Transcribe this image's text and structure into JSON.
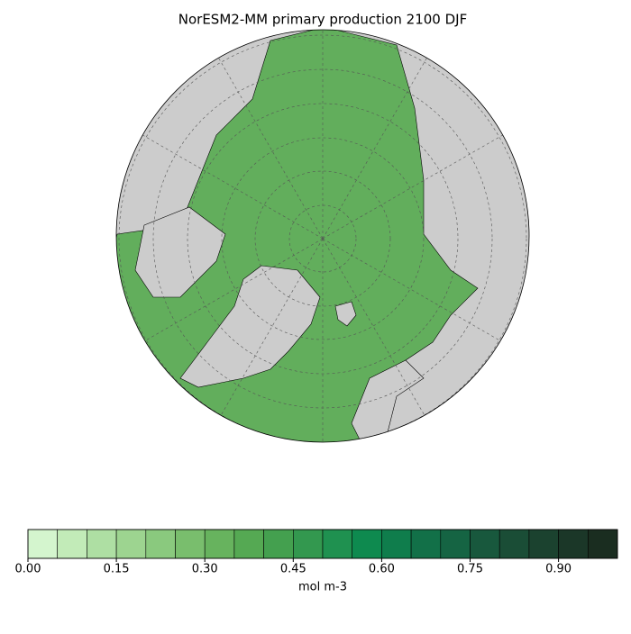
{
  "title": "NorESM2-MM primary production 2100 DJF",
  "colorbar": {
    "label": "mol m-3",
    "levels": [
      0,
      0.05,
      0.1,
      0.15,
      0.2,
      0.25,
      0.3,
      0.35,
      0.4,
      0.45,
      0.5,
      0.55,
      0.6,
      0.65,
      0.7,
      0.75,
      0.8,
      0.85,
      0.9,
      0.95,
      1.0
    ],
    "colors": [
      "#d4f5ce",
      "#c2ebb8",
      "#aedfa3",
      "#9dd490",
      "#8ac97e",
      "#79be6d",
      "#67b35e",
      "#55a953",
      "#44a04f",
      "#33984f",
      "#1f9150",
      "#0e8a4f",
      "#0f7d4c",
      "#127048",
      "#156443",
      "#18583d",
      "#1a4d36",
      "#1b422f",
      "#1b3728",
      "#1a2d20"
    ],
    "ticks": [
      {
        "value": 0,
        "label": "0.00"
      },
      {
        "value": 0.15,
        "label": "0.15"
      },
      {
        "value": 0.3,
        "label": "0.30"
      },
      {
        "value": 0.45,
        "label": "0.45"
      },
      {
        "value": 0.6,
        "label": "0.60"
      },
      {
        "value": 0.75,
        "label": "0.75"
      },
      {
        "value": 0.9,
        "label": "0.90"
      }
    ]
  }
}
